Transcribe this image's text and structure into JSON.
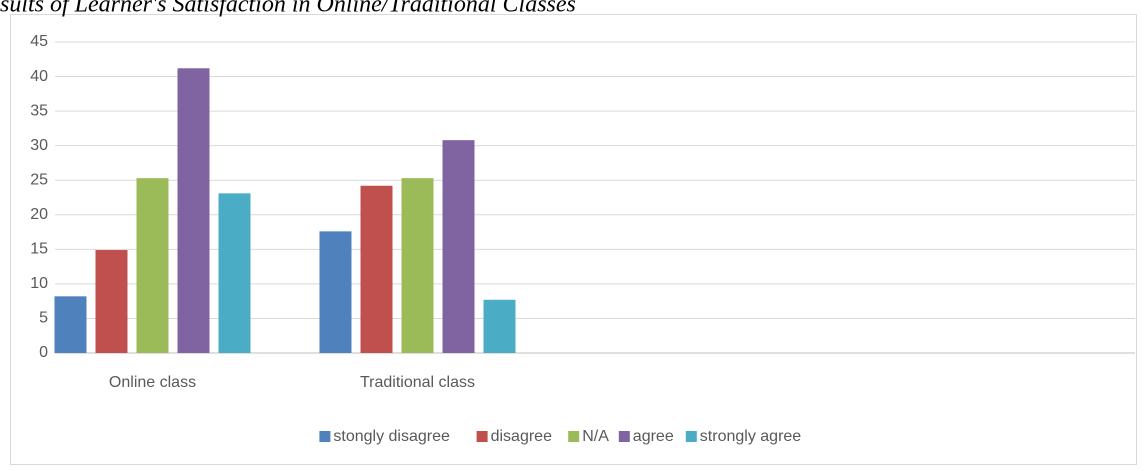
{
  "chart_data": {
    "type": "bar",
    "title": "sults of Learner's Satisfaction in Online/Traditional Classes",
    "categories": [
      "Online class",
      "Traditional class",
      null,
      null
    ],
    "series": [
      {
        "name": "stongly disagree",
        "color": "#4f81bd",
        "values": [
          8.2,
          17.6,
          null,
          null
        ]
      },
      {
        "name": "disagree",
        "color": "#c0504d",
        "values": [
          14.9,
          24.2,
          null,
          null
        ]
      },
      {
        "name": "N/A",
        "color": "#9bbb59",
        "values": [
          25.3,
          25.3,
          null,
          null
        ]
      },
      {
        "name": "agree",
        "color": "#8064a2",
        "values": [
          41.2,
          30.8,
          null,
          null
        ]
      },
      {
        "name": "strongly agree",
        "color": "#4bacc6",
        "values": [
          23.1,
          7.7,
          null,
          null
        ]
      }
    ],
    "ylim": [
      0,
      45
    ],
    "yticks": [
      0,
      5,
      10,
      15,
      20,
      25,
      30,
      35,
      40,
      45
    ],
    "grid": true,
    "legend": "bottom"
  }
}
